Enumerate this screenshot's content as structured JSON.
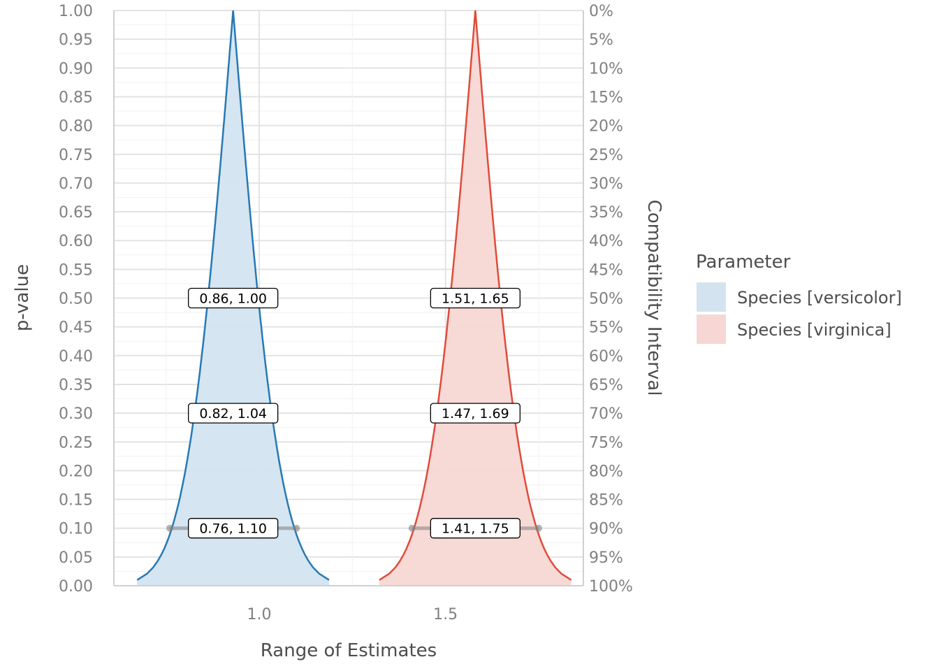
{
  "chart_data": {
    "type": "area",
    "xlabel": "Range of Estimates",
    "ylabel": "p-value",
    "y2label": "Compatibility Interval",
    "xlim": [
      0.61,
      1.87
    ],
    "ylim": [
      0,
      1
    ],
    "x_ticks": [
      1.0,
      1.5
    ],
    "x_tick_labels": [
      "1.0",
      "1.5"
    ],
    "y_ticks": [
      0,
      0.05,
      0.1,
      0.15,
      0.2,
      0.25,
      0.3,
      0.35,
      0.4,
      0.45,
      0.5,
      0.55,
      0.6,
      0.65,
      0.7,
      0.75,
      0.8,
      0.85,
      0.9,
      0.95,
      1.0
    ],
    "y_tick_labels": [
      "0.00",
      "0.05",
      "0.10",
      "0.15",
      "0.20",
      "0.25",
      "0.30",
      "0.35",
      "0.40",
      "0.45",
      "0.50",
      "0.55",
      "0.60",
      "0.65",
      "0.70",
      "0.75",
      "0.80",
      "0.85",
      "0.90",
      "0.95",
      "1.00"
    ],
    "y2_tick_labels": [
      "100%",
      "95%",
      "90%",
      "85%",
      "80%",
      "75%",
      "70%",
      "65%",
      "60%",
      "55%",
      "50%",
      "45%",
      "40%",
      "35%",
      "30%",
      "25%",
      "20%",
      "15%",
      "10%",
      "5%",
      "0%"
    ],
    "grid": true,
    "legend_title": "Parameter",
    "legend_position": "right",
    "series": [
      {
        "name": "Species [versicolor]",
        "estimate": 0.93,
        "std_error": 0.1,
        "x_range": [
          0.67,
          1.2
        ],
        "color": "#2679b4",
        "fill": "#d3e4f0",
        "intervals": [
          {
            "p": 0.5,
            "label": "0.86, 1.00"
          },
          {
            "p": 0.3,
            "label": "0.82, 1.04"
          },
          {
            "p": 0.1,
            "label": "0.76, 1.10",
            "low": 0.76,
            "high": 1.1
          }
        ]
      },
      {
        "name": "Species [virginica]",
        "estimate": 1.58,
        "std_error": 0.1,
        "x_range": [
          1.32,
          1.85
        ],
        "color": "#e04b3a",
        "fill": "#f7d7d4",
        "intervals": [
          {
            "p": 0.5,
            "label": "1.51, 1.65"
          },
          {
            "p": 0.3,
            "label": "1.47, 1.69"
          },
          {
            "p": 0.1,
            "label": "1.41, 1.75",
            "low": 1.41,
            "high": 1.75
          }
        ]
      }
    ]
  }
}
